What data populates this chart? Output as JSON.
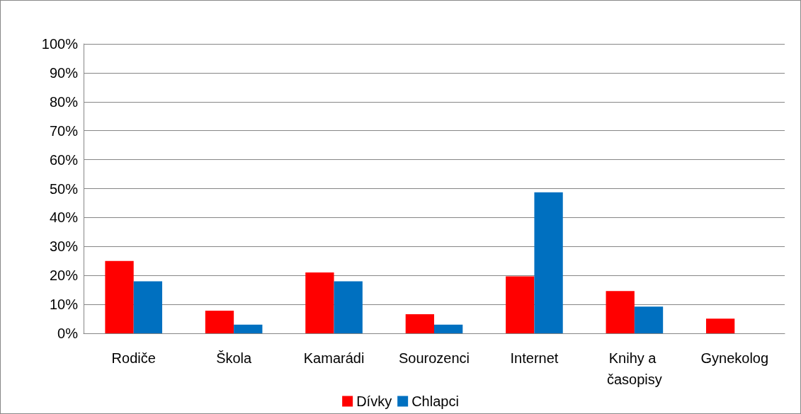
{
  "chart_data": {
    "type": "bar",
    "categories": [
      "Rodiče",
      "Škola",
      "Kamarádi",
      "Sourozenci",
      "Internet",
      "Knihy a časopisy",
      "Gynekolog"
    ],
    "series": [
      {
        "name": "Dívky",
        "color": "#ff0000",
        "values": [
          25,
          7.8,
          21,
          6.6,
          19.7,
          14.6,
          5.1
        ]
      },
      {
        "name": "Chlapci",
        "color": "#0070c0",
        "values": [
          18,
          3,
          18,
          3,
          48.7,
          9.2,
          0
        ]
      }
    ],
    "ylim": [
      0,
      100
    ],
    "yticks": [
      {
        "value": 0,
        "label": "0%"
      },
      {
        "value": 10,
        "label": "10%"
      },
      {
        "value": 20,
        "label": "20%"
      },
      {
        "value": 30,
        "label": "30%"
      },
      {
        "value": 40,
        "label": "40%"
      },
      {
        "value": 50,
        "label": "50%"
      },
      {
        "value": 60,
        "label": "60%"
      },
      {
        "value": 70,
        "label": "70%"
      },
      {
        "value": 80,
        "label": "80%"
      },
      {
        "value": 90,
        "label": "90%"
      },
      {
        "value": 100,
        "label": "100%"
      }
    ],
    "grid": "y",
    "legend": "bottom"
  }
}
